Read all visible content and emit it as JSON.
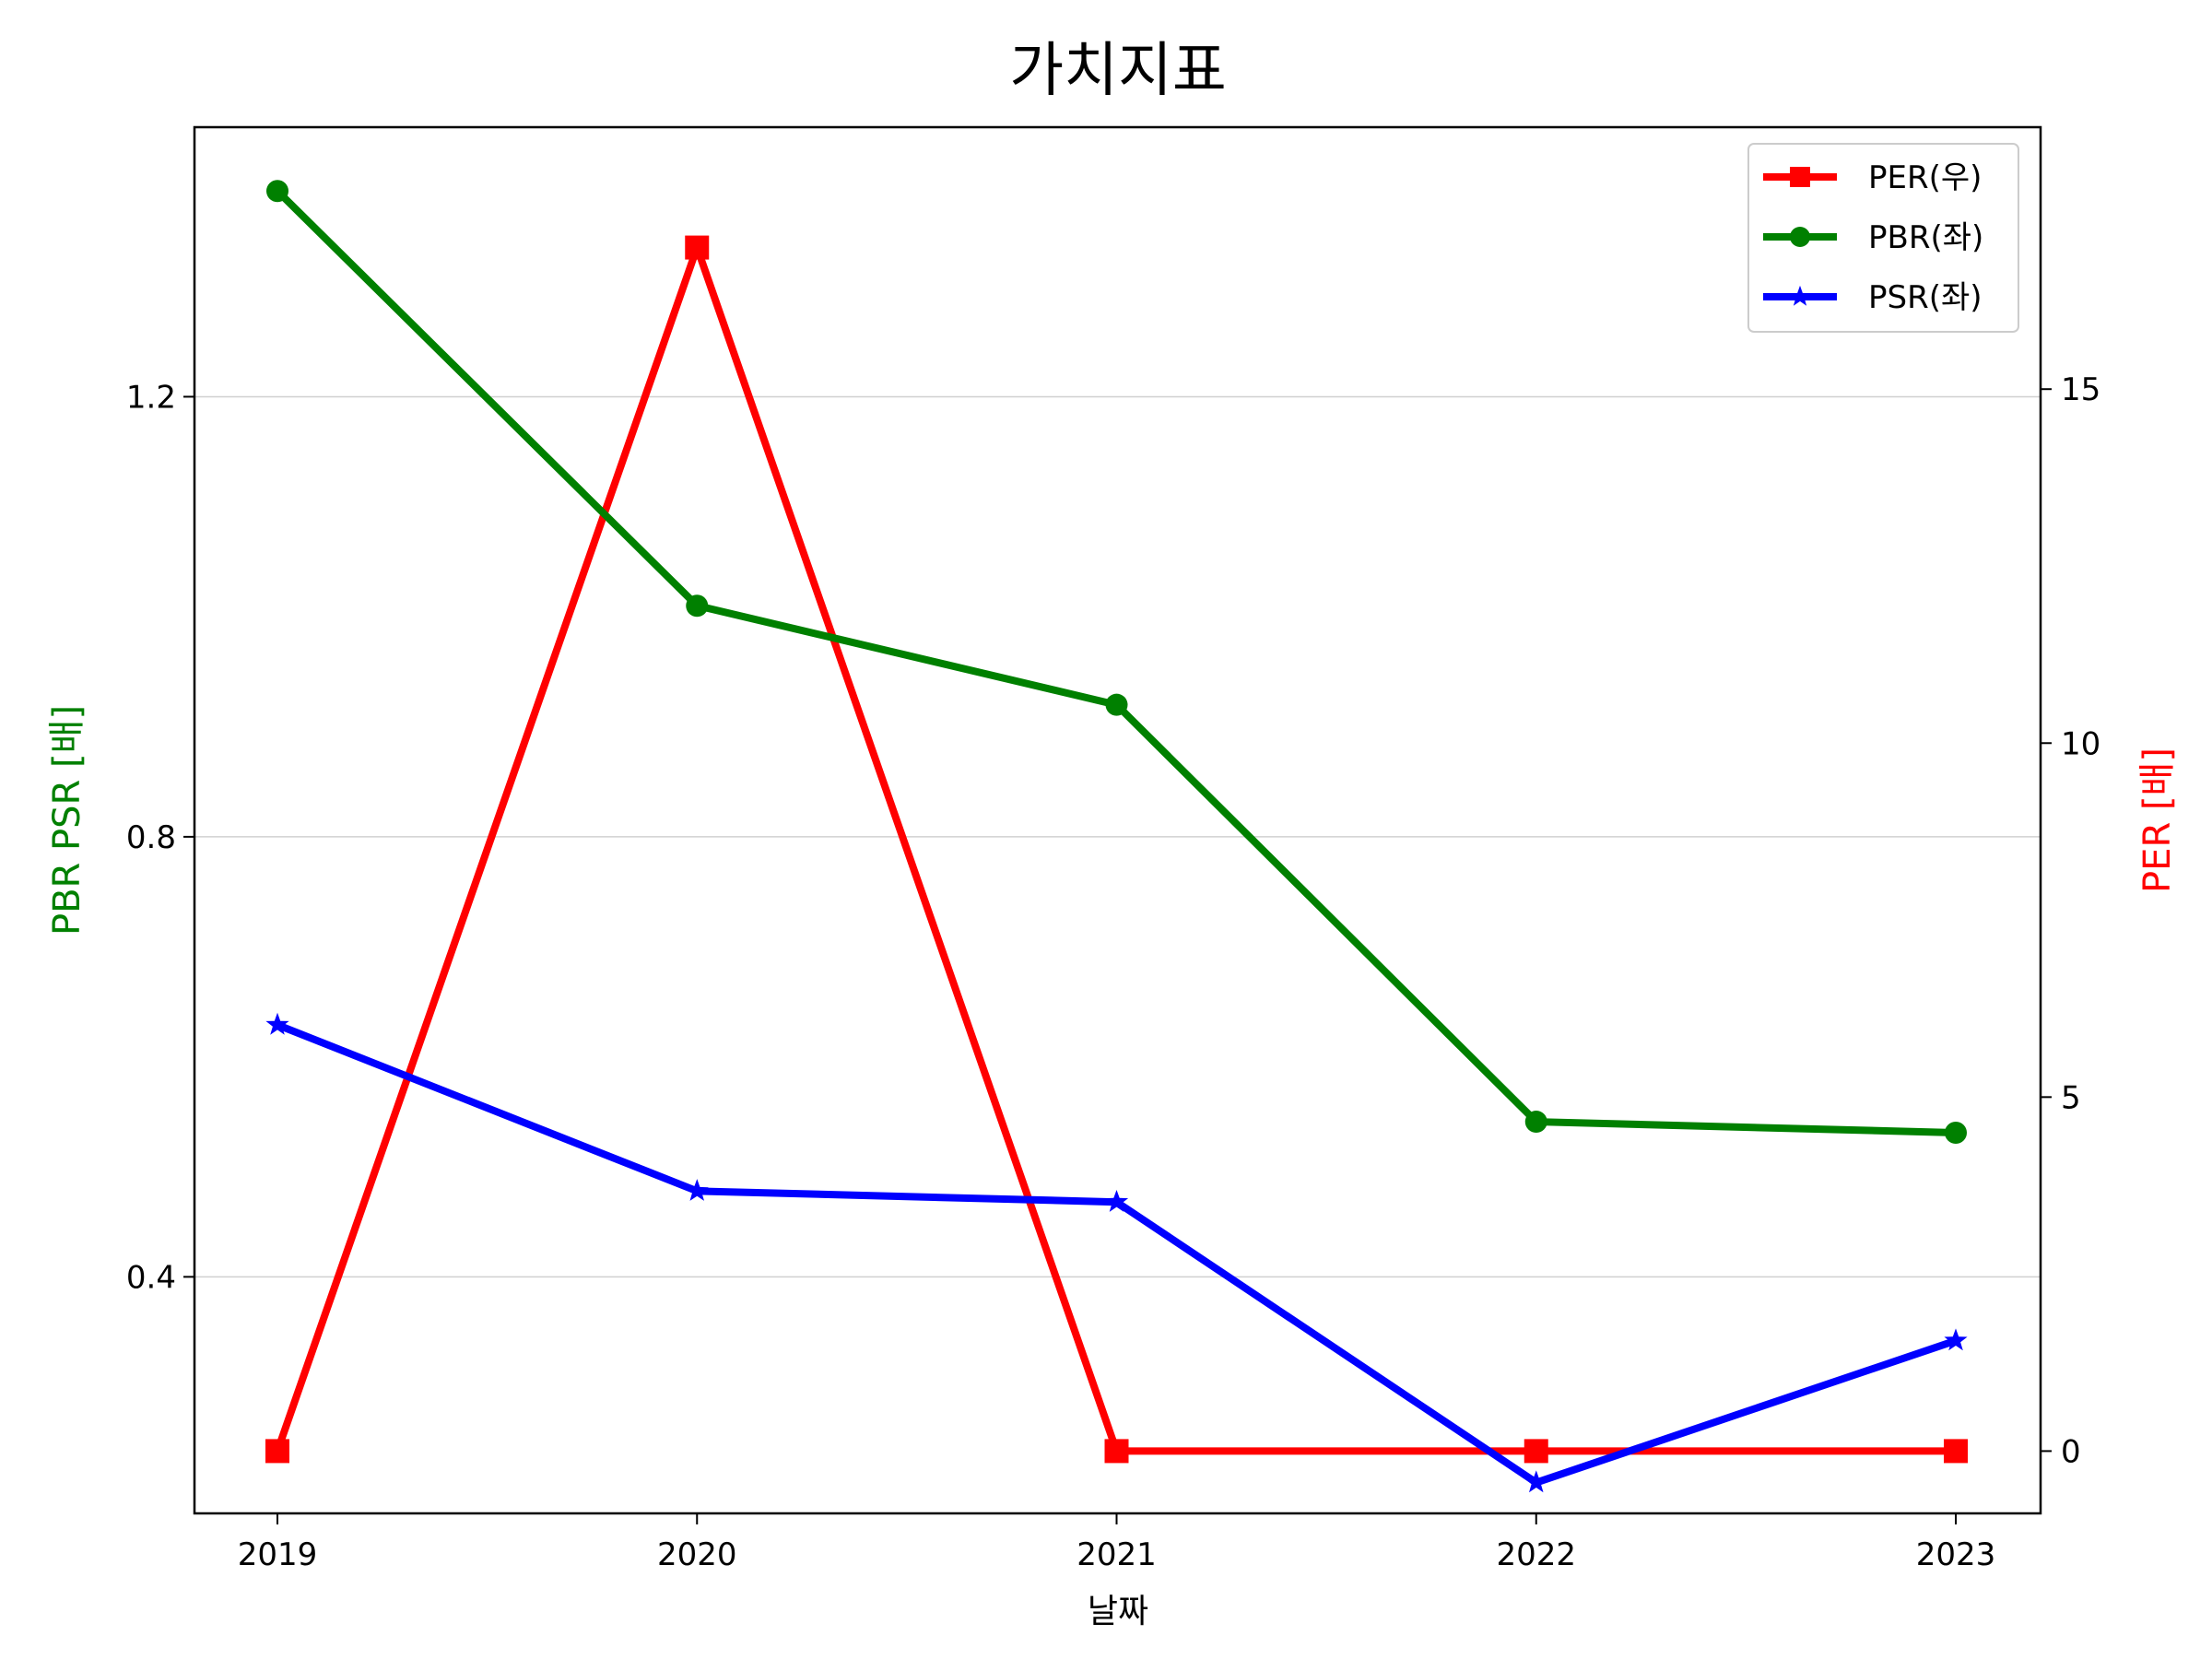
{
  "chart_data": {
    "type": "line",
    "title": "가치지표",
    "xlabel": "날짜",
    "ylabel_left": "PBR PSR [배]",
    "ylabel_right": "PER [배]",
    "categories": [
      "2019",
      "2020",
      "2021",
      "2022",
      "2023"
    ],
    "left_axis": {
      "ylim": [
        0.185,
        1.445
      ],
      "ticks": [
        0.4,
        0.8,
        1.2
      ],
      "tick_labels": [
        "0.4",
        "0.8",
        "1.2"
      ],
      "grid": true
    },
    "right_axis": {
      "ylim": [
        -0.88,
        18.7
      ],
      "ticks": [
        0,
        5,
        10,
        15
      ],
      "tick_labels": [
        "0",
        "5",
        "10",
        "15"
      ]
    },
    "series": [
      {
        "name": "PER(우)",
        "axis": "right",
        "values": [
          0,
          17,
          0,
          0,
          0
        ],
        "color": "#ff0000",
        "marker": "square"
      },
      {
        "name": "PBR(좌)",
        "axis": "left",
        "values": [
          1.387,
          1.01,
          0.92,
          0.541,
          0.531
        ],
        "color": "#008000",
        "marker": "circle"
      },
      {
        "name": "PSR(좌)",
        "axis": "left",
        "values": [
          0.629,
          0.478,
          0.468,
          0.213,
          0.342
        ],
        "color": "#0000ff",
        "marker": "star"
      }
    ],
    "legend_position": "top-right"
  }
}
